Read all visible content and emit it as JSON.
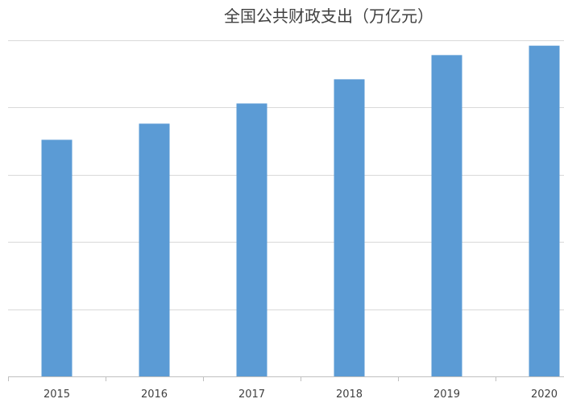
{
  "chart_data": {
    "type": "bar",
    "title": "全国公共财政支出（万亿元）",
    "categories": [
      "2015",
      "2016",
      "2017",
      "2018",
      "2019",
      "2020"
    ],
    "series": [
      {
        "values": [
          17.6,
          18.8,
          20.3,
          22.1,
          23.9,
          24.6
        ],
        "color": "#5b9bd5"
      }
    ],
    "xlabel": "",
    "ylabel": "",
    "ylim": [
      0,
      25
    ],
    "grid": true,
    "legend": "none"
  }
}
